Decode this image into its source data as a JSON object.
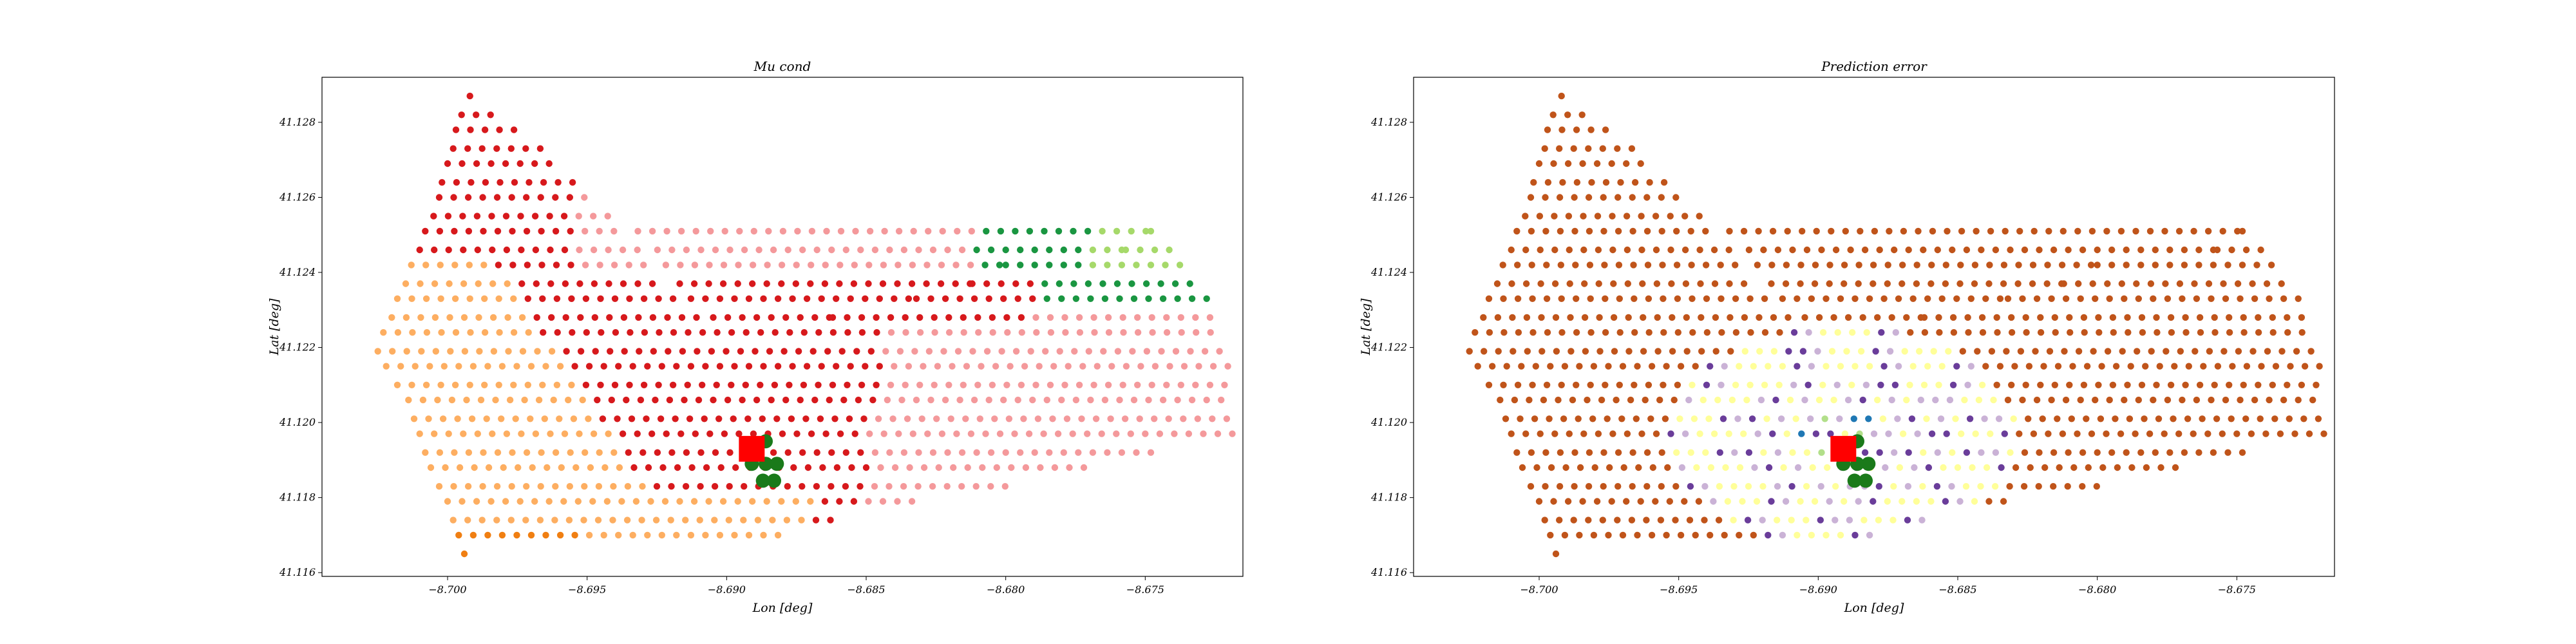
{
  "chart_data": [
    {
      "type": "scatter",
      "title": "Mu cond",
      "xlabel": "Lon [deg]",
      "ylabel": "Lat [deg]",
      "xlim": [
        -8.7045,
        -8.6715
      ],
      "ylim": [
        41.1159,
        41.1292
      ],
      "xticks": [
        -8.7,
        -8.695,
        -8.69,
        -8.685,
        -8.68,
        -8.675
      ],
      "xtick_labels": [
        "−8.700",
        "−8.695",
        "−8.690",
        "−8.685",
        "−8.680",
        "−8.675"
      ],
      "yticks": [
        41.116,
        41.118,
        41.12,
        41.122,
        41.124,
        41.126,
        41.128
      ],
      "ytick_labels": [
        "41.116",
        "41.118",
        "41.120",
        "41.122",
        "41.124",
        "41.126",
        "41.128"
      ],
      "grid": false,
      "legend": false,
      "coloring": "cluster",
      "series": [],
      "colors": {
        "red": "#d7191c",
        "pink": "#f4999b",
        "orange": "#fdae61",
        "dark_orange": "#f07f12",
        "green": "#1a9641",
        "light_green": "#a6d96a",
        "marker_square": "#ff0000",
        "marker_circle": "#1a7a1a"
      },
      "markers": {
        "square": {
          "x": -8.6891,
          "y": 41.1193
        },
        "circles": [
          {
            "x": -8.6891,
            "y": 41.1189
          },
          {
            "x": -8.6886,
            "y": 41.1189
          },
          {
            "x": -8.6882,
            "y": 41.1189
          },
          {
            "x": -8.6887,
            "y": 41.11845
          },
          {
            "x": -8.6883,
            "y": 41.11845
          },
          {
            "x": -8.6886,
            "y": 41.1195
          }
        ]
      }
    },
    {
      "type": "scatter",
      "title": "Prediction error",
      "xlabel": "Lon [deg]",
      "ylabel": "Lat [deg]",
      "xlim": [
        -8.7045,
        -8.6715
      ],
      "ylim": [
        41.1159,
        41.1292
      ],
      "xticks": [
        -8.7,
        -8.695,
        -8.69,
        -8.685,
        -8.68,
        -8.675
      ],
      "xtick_labels": [
        "−8.700",
        "−8.695",
        "−8.690",
        "−8.685",
        "−8.680",
        "−8.675"
      ],
      "yticks": [
        41.116,
        41.118,
        41.12,
        41.122,
        41.124,
        41.126,
        41.128
      ],
      "ytick_labels": [
        "41.116",
        "41.118",
        "41.120",
        "41.122",
        "41.124",
        "41.126",
        "41.128"
      ],
      "grid": false,
      "legend": false,
      "coloring": "error",
      "series": [],
      "colors": {
        "far": "#c0541a",
        "yellow": "#ffff99",
        "lavender": "#cab2d6",
        "purple": "#6a3d9a",
        "blue": "#1f78b4",
        "light_green": "#b2df8a",
        "marker_square": "#ff0000",
        "marker_circle": "#1a7a1a"
      },
      "markers": {
        "square": {
          "x": -8.6891,
          "y": 41.1193
        },
        "circles": [
          {
            "x": -8.6891,
            "y": 41.1189
          },
          {
            "x": -8.6886,
            "y": 41.1189
          },
          {
            "x": -8.6882,
            "y": 41.1189
          },
          {
            "x": -8.6887,
            "y": 41.11845
          },
          {
            "x": -8.6883,
            "y": 41.11845
          },
          {
            "x": -8.6886,
            "y": 41.1195
          }
        ]
      }
    }
  ],
  "grid_rows": [
    {
      "y": 41.1287,
      "x0": -8.6992,
      "x1": -8.6987
    },
    {
      "y": 41.1282,
      "x0": -8.6995,
      "x1": -8.698
    },
    {
      "y": 41.1278,
      "x0": -8.6997,
      "x1": -8.6974
    },
    {
      "y": 41.1273,
      "x0": -8.6998,
      "x1": -8.6966
    },
    {
      "y": 41.1269,
      "x0": -8.7,
      "x1": -8.696
    },
    {
      "y": 41.1264,
      "x0": -8.7002,
      "x1": -8.6955
    },
    {
      "y": 41.126,
      "x0": -8.7003,
      "x1": -8.695
    },
    {
      "y": 41.1255,
      "x0": -8.7005,
      "x1": -8.6942
    },
    {
      "y": 41.1251,
      "x0": -8.7008,
      "x1": -8.6937,
      "x2": -8.6748,
      "x3": -8.6744
    },
    {
      "y": 41.1246,
      "x0": -8.701,
      "x1": -8.693,
      "x2": -8.6757,
      "x3": -8.6739
    },
    {
      "y": 41.1242,
      "x0": -8.7013,
      "x1": -8.6927,
      "x2": -8.68,
      "x3": -8.6735
    },
    {
      "y": 41.1237,
      "x0": -8.7015,
      "x1": -8.6922,
      "x2": -8.6812,
      "x3": -8.673
    },
    {
      "y": 41.1233,
      "x0": -8.7018,
      "x1": -8.6918,
      "x2": -8.6832,
      "x3": -8.6728
    },
    {
      "y": 41.1228,
      "x0": -8.702,
      "x1": -8.691,
      "x2": -8.6862,
      "x3": -8.6725
    },
    {
      "y": 41.1224,
      "x0": -8.7023,
      "x1": -8.6722
    },
    {
      "y": 41.1219,
      "x0": -8.7025,
      "x1": -8.672
    },
    {
      "y": 41.1215,
      "x0": -8.7022,
      "x1": -8.6719
    },
    {
      "y": 41.121,
      "x0": -8.7018,
      "x1": -8.672
    },
    {
      "y": 41.1206,
      "x0": -8.7014,
      "x1": -8.6721
    },
    {
      "y": 41.1201,
      "x0": -8.7012,
      "x1": -8.6718
    },
    {
      "y": 41.1197,
      "x0": -8.701,
      "x1": -8.6718
    },
    {
      "y": 41.1192,
      "x0": -8.7008,
      "x1": -8.6745
    },
    {
      "y": 41.1188,
      "x0": -8.7006,
      "x1": -8.677
    },
    {
      "y": 41.1183,
      "x0": -8.7003,
      "x1": -8.68
    },
    {
      "y": 41.1179,
      "x0": -8.7,
      "x1": -8.683
    },
    {
      "y": 41.1174,
      "x0": -8.6998,
      "x1": -8.686
    },
    {
      "y": 41.117,
      "x0": -8.6996,
      "x1": -8.688
    },
    {
      "y": 41.1165,
      "x0": -8.6994,
      "x1": -8.699
    }
  ]
}
